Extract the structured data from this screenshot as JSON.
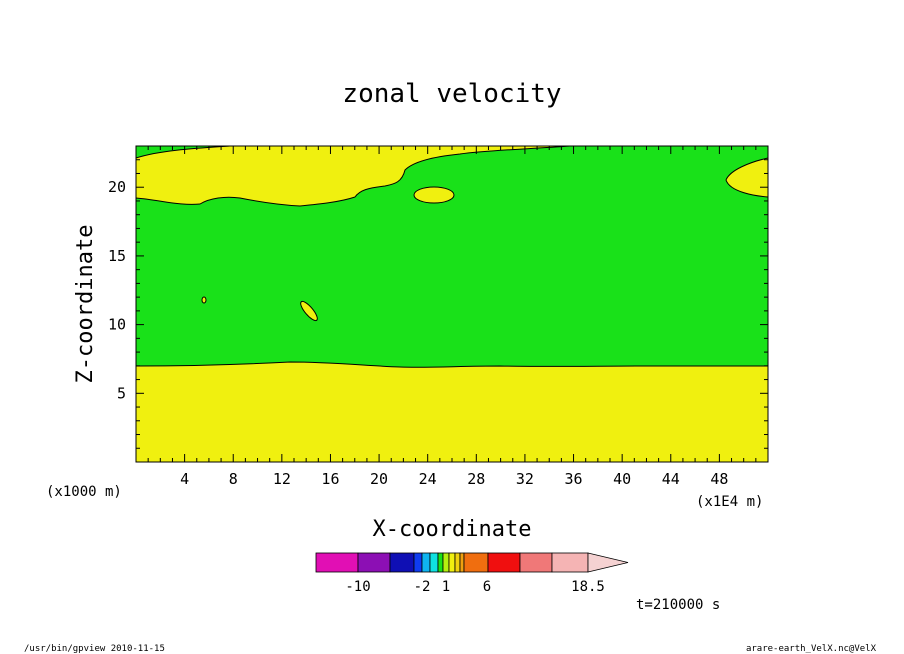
{
  "chart_data": {
    "type": "heatmap",
    "title": "zonal velocity",
    "xlabel": "X-coordinate",
    "ylabel": "Z-coordinate",
    "x_unit_note": "(x1E4 m)",
    "z_unit_note": "(x1000 m)",
    "xlim": [
      0,
      52
    ],
    "ylim": [
      0,
      23
    ],
    "x_ticks": [
      4,
      8,
      12,
      16,
      20,
      24,
      28,
      32,
      36,
      40,
      44,
      48
    ],
    "y_ticks": [
      5,
      10,
      15,
      20
    ],
    "time_label": "t=210000 s",
    "colorbar": {
      "labels": [
        {
          "text": "-10",
          "value": -10
        },
        {
          "text": "-2",
          "value": -2
        },
        {
          "text": "1",
          "value": 1
        },
        {
          "text": "6",
          "value": 6
        },
        {
          "text": "18.5",
          "value": 18.5
        }
      ],
      "colors": [
        "#e10fb4",
        "#8c0fb4",
        "#0f0fb4",
        "#0f3cf0",
        "#0fb4f0",
        "#0fe1e1",
        "#19e119",
        "#b4f00f",
        "#f0f00f",
        "#f0d20f",
        "#f0a00f",
        "#f06e0f",
        "#f00f0f",
        "#f07878",
        "#f5b4b4",
        "#f5d2d2"
      ],
      "extend_max": true
    },
    "regions": [
      {
        "name": "upper-yellow",
        "color": "#f0f00f"
      },
      {
        "name": "middle-green",
        "color": "#19e119"
      },
      {
        "name": "lower-yellow",
        "color": "#f0f00f"
      }
    ]
  },
  "footer": {
    "left": "/usr/bin/gpview   2010-11-15",
    "right": "arare-earth_VelX.nc@VelX"
  }
}
